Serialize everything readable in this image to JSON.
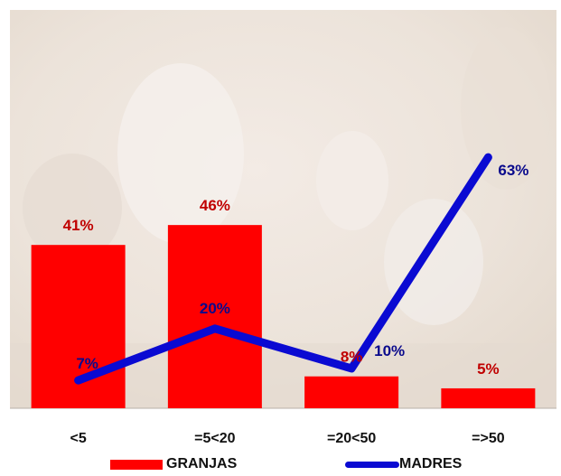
{
  "chart_data": {
    "type": "bar",
    "categories": [
      "<5",
      "=5<20",
      "=20<50",
      "=>50"
    ],
    "series": [
      {
        "name": "GRANJAS",
        "type": "bar",
        "values": [
          41,
          46,
          8,
          5
        ],
        "labels": [
          "41%",
          "46%",
          "8%",
          "5%"
        ],
        "color": "#ff0000"
      },
      {
        "name": "MADRES",
        "type": "line",
        "values": [
          7,
          20,
          10,
          63
        ],
        "labels": [
          "7%",
          "20%",
          "10%",
          "63%"
        ],
        "color": "#0a0ad2"
      }
    ],
    "ylim": [
      0,
      100
    ],
    "label_colors": {
      "bars": "#c00000",
      "line": "#0a0a8c"
    },
    "background": "faded photograph of pigs behind plot area",
    "grid": false,
    "legend_position": "bottom"
  }
}
